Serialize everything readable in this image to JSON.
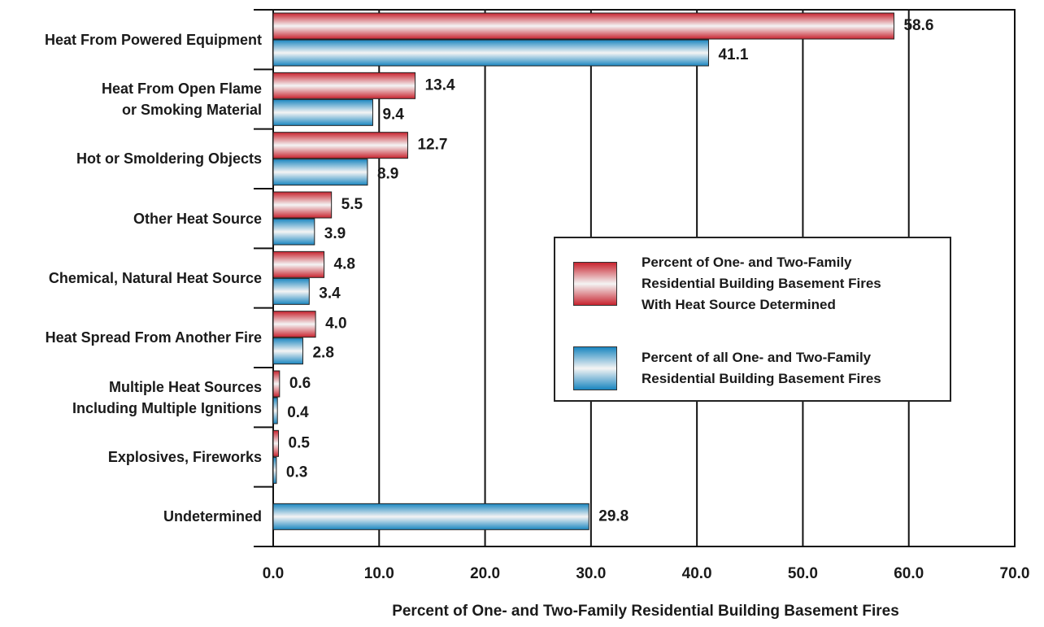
{
  "chart_data": {
    "type": "hbar",
    "xlabel": "Percent of One- and Two-Family Residential Building Basement Fires",
    "categories": [
      "Heat From Powered Equipment",
      "Heat From Open Flame\nor Smoking Material",
      "Hot or Smoldering Objects",
      "Other  Heat Source",
      "Chemical, Natural Heat Source",
      "Heat Spread From Another Fire",
      "Multiple Heat Sources\nIncluding Multiple Ignitions",
      "Explosives, Fireworks",
      "Undetermined"
    ],
    "series": [
      {
        "name": "Percent of One- and Two-Family\nResidential Building Basement Fires\nWith Heat Source Determined",
        "color": "#c8242f",
        "values": [
          58.6,
          13.4,
          12.7,
          5.5,
          4.8,
          4.0,
          0.6,
          0.5,
          null
        ],
        "value_labels": [
          "58.6",
          "13.4",
          "12.7",
          "5.5",
          "4.8",
          "4.0",
          "0.6",
          "0.5",
          null
        ]
      },
      {
        "name": "Percent of all One- and Two-Family\nResidential Building Basement Fires",
        "color": "#1a86c0",
        "values": [
          41.1,
          9.4,
          8.9,
          3.9,
          3.4,
          2.8,
          0.4,
          0.3,
          29.8
        ],
        "value_labels": [
          "41.1",
          "9.4",
          "8.9",
          "3.9",
          "3.4",
          "2.8",
          "0.4",
          "0.3",
          "29.8"
        ]
      }
    ],
    "xlim": [
      0,
      70
    ],
    "xticks": [
      {
        "value": 0,
        "label": "0.0"
      },
      {
        "value": 10,
        "label": "10.0"
      },
      {
        "value": 20,
        "label": "20.0"
      },
      {
        "value": 30,
        "label": "30.0"
      },
      {
        "value": 40,
        "label": "40.0"
      },
      {
        "value": 50,
        "label": "50.0"
      },
      {
        "value": 60,
        "label": "60.0"
      },
      {
        "value": 70,
        "label": "70.0"
      }
    ],
    "grid": true,
    "legend": "right"
  }
}
